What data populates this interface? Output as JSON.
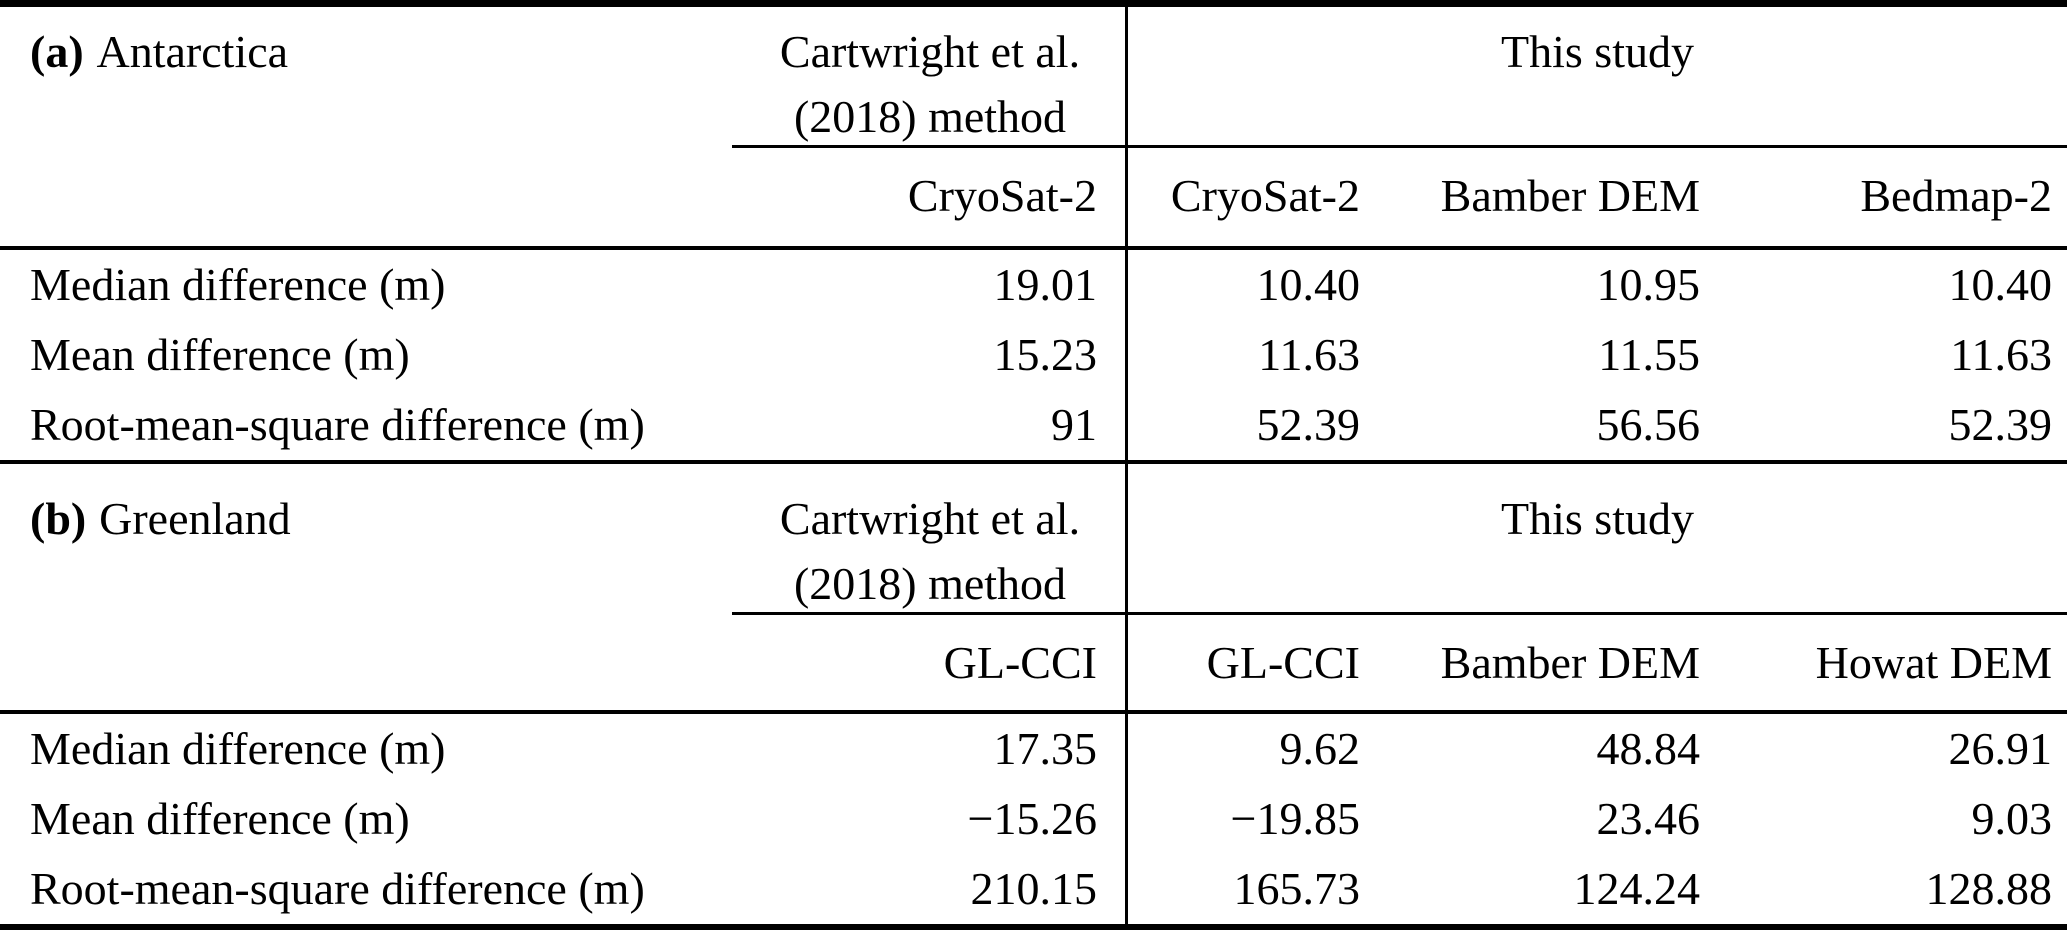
{
  "page": {
    "background": "#ffffff",
    "text_color": "#000000"
  },
  "table": {
    "sections": [
      {
        "title_bold": "(a)",
        "title_rest": "Antarctica",
        "method_header": {
          "line1": "Cartwright et al.",
          "line2": "(2018) method"
        },
        "group_header": "This study",
        "column_headers": [
          "CryoSat-2",
          "CryoSat-2",
          "Bamber DEM",
          "Bedmap-2"
        ],
        "rows": [
          {
            "label": "Median difference (m)",
            "values": [
              "19.01",
              "10.40",
              "10.95",
              "10.40"
            ]
          },
          {
            "label": "Mean difference (m)",
            "values": [
              "15.23",
              "11.63",
              "11.55",
              "11.63"
            ]
          },
          {
            "label": "Root-mean-square difference (m)",
            "values": [
              "91",
              "52.39",
              "56.56",
              "52.39"
            ]
          }
        ]
      },
      {
        "title_bold": "(b)",
        "title_rest": "Greenland",
        "method_header": {
          "line1": "Cartwright et al.",
          "line2": "(2018) method"
        },
        "group_header": "This study",
        "column_headers": [
          "GL-CCI",
          "GL-CCI",
          "Bamber DEM",
          "Howat DEM"
        ],
        "rows": [
          {
            "label": "Median difference (m)",
            "values": [
              "17.35",
              "9.62",
              "48.84",
              "26.91"
            ]
          },
          {
            "label": "Mean difference (m)",
            "values": [
              "−15.26",
              "−19.85",
              "23.46",
              "9.03"
            ]
          },
          {
            "label": "Root-mean-square difference (m)",
            "values": [
              "210.15",
              "165.73",
              "124.24",
              "128.88"
            ]
          }
        ]
      }
    ]
  }
}
